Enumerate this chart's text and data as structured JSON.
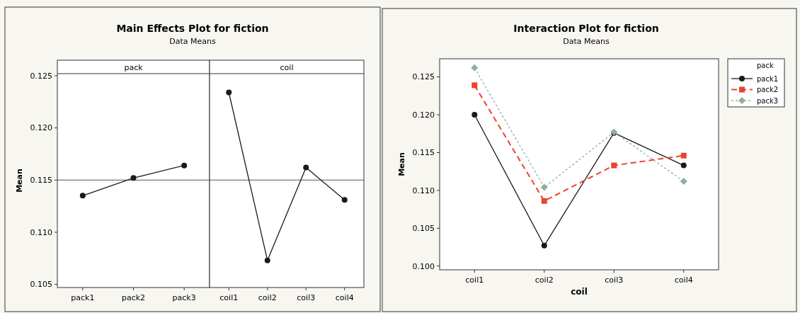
{
  "chart_data": [
    {
      "type": "line",
      "title": "Main Effects Plot for fiction",
      "subtitle": "Data Means",
      "ylabel": "Mean",
      "annotations": [
        "pack"
      ],
      "categories": [
        "pack1",
        "pack2",
        "pack3"
      ],
      "series": [
        {
          "color": "#1a1a1a",
          "values": [
            0.1135,
            0.1152,
            0.1164
          ],
          "marker": "circle",
          "line_style": "solid"
        }
      ],
      "ylim": [
        0.1047,
        0.1252
      ],
      "yticks": [
        0.105,
        {
          "value": 0.11,
          "label": "0.110"
        },
        0.115,
        {
          "value": 0.12,
          "label": "0.120"
        },
        0.125
      ],
      "ref_lines": [
        {
          "axis": "y",
          "value": 0.115,
          "color": "#555555"
        }
      ]
    },
    {
      "type": "line",
      "annotations": [
        "coil"
      ],
      "categories": [
        "coil1",
        "coil2",
        "coil3",
        "coil4"
      ],
      "series": [
        {
          "color": "#1a1a1a",
          "values": [
            0.1234,
            0.1073,
            0.1162,
            0.1131
          ],
          "marker": "circle",
          "line_style": "solid"
        }
      ],
      "ylim": [
        0.1047,
        0.1252
      ],
      "tick_labels": "x",
      "ref_lines": [
        {
          "axis": "y",
          "value": 0.115,
          "color": "#555555"
        }
      ]
    },
    {
      "type": "line",
      "title": "Interaction Plot for fiction",
      "subtitle": "Data Means",
      "xlabel": "coil",
      "ylabel": "Mean",
      "legend_title": "pack",
      "legend": "top right",
      "categories": [
        "coil1",
        "coil2",
        "coil3",
        "coil4"
      ],
      "series": [
        {
          "name": "pack1",
          "color": "#1a1a1a",
          "values": [
            0.12,
            0.1027,
            0.1176,
            0.1133
          ],
          "marker": "circle",
          "line_style": "solid"
        },
        {
          "name": "pack2",
          "color": "#e8452c",
          "values": [
            0.1239,
            0.1086,
            0.1133,
            0.1146
          ],
          "marker": "square",
          "line_style": "dashed"
        },
        {
          "name": "pack3",
          "color": "#8fb09a",
          "values": [
            0.1262,
            0.1104,
            0.1177,
            0.1112
          ],
          "marker": "diamond",
          "line_style": "dotted"
        }
      ],
      "ylim": [
        0.0995,
        0.1274
      ],
      "yticks": [
        {
          "value": 0.1,
          "label": "0.100"
        },
        0.105,
        {
          "value": 0.11,
          "label": "0.110"
        },
        0.115,
        {
          "value": 0.12,
          "label": "0.120"
        },
        0.125
      ]
    }
  ]
}
